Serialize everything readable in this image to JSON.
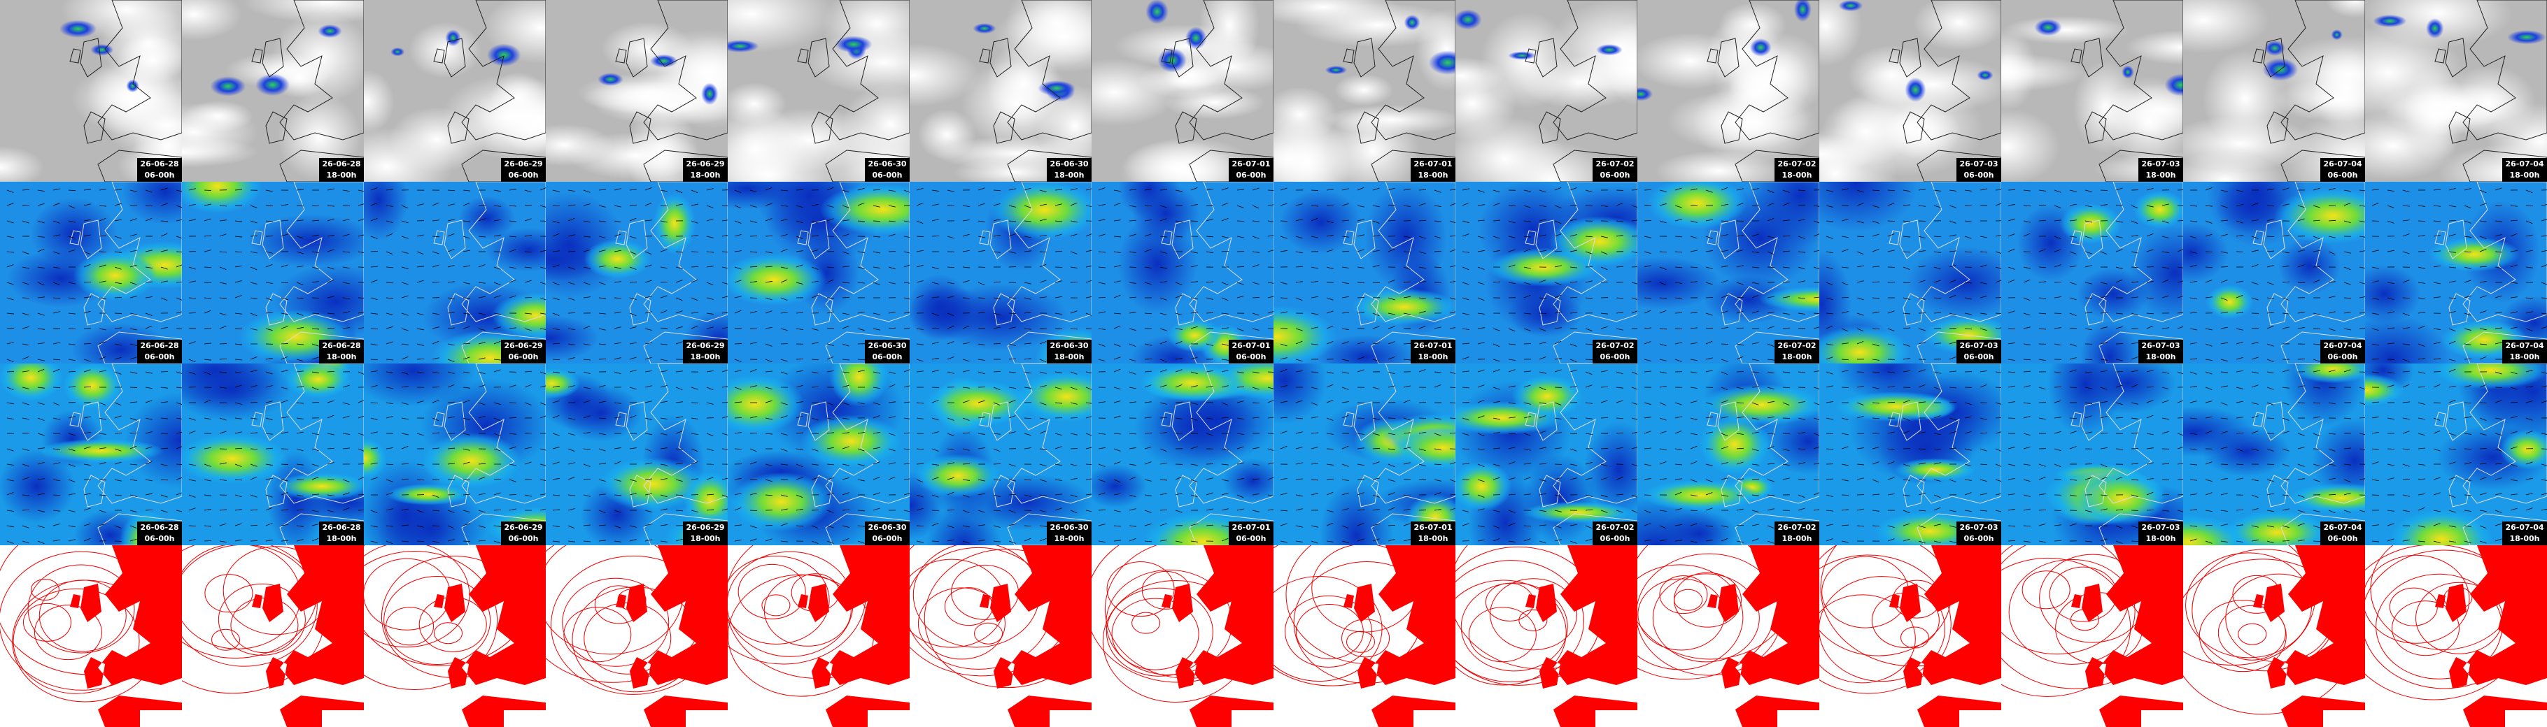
{
  "panels": [
    {
      "date": "26-06-28",
      "time": "06-00h"
    },
    {
      "date": "26-06-28",
      "time": "18-00h"
    },
    {
      "date": "26-06-29",
      "time": "06-00h"
    },
    {
      "date": "26-06-29",
      "time": "18-00h"
    },
    {
      "date": "26-06-30",
      "time": "06-00h"
    },
    {
      "date": "26-06-30",
      "time": "18-00h"
    },
    {
      "date": "26-07-01",
      "time": "06-00h"
    },
    {
      "date": "26-07-01",
      "time": "18-00h"
    },
    {
      "date": "26-07-02",
      "time": "06-00h"
    },
    {
      "date": "26-07-02",
      "time": "18-00h"
    },
    {
      "date": "26-07-03",
      "time": "06-00h"
    },
    {
      "date": "26-07-03",
      "time": "18-00h"
    },
    {
      "date": "26-07-04",
      "time": "06-00h"
    },
    {
      "date": "26-07-04",
      "time": "18-00h"
    }
  ]
}
